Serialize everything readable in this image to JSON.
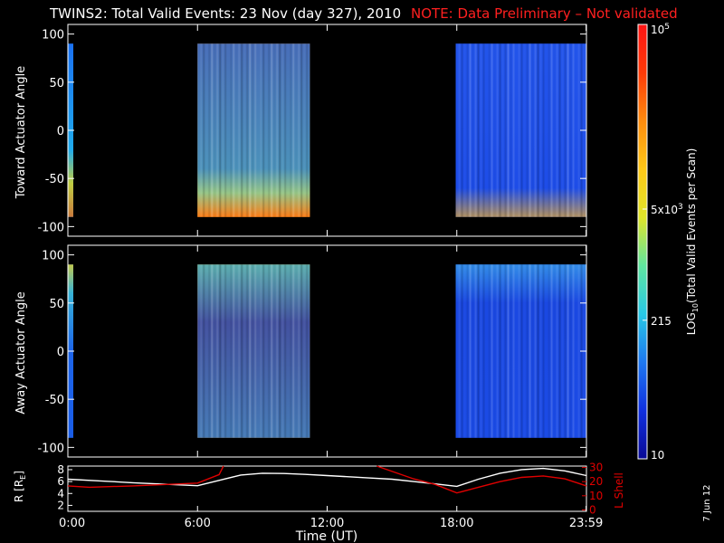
{
  "title": "TWINS2: Total Valid Events: 23 Nov (day 327), 2010",
  "note": "NOTE: Data Preliminary – Not validated",
  "date_stamp": "7 Jun 12",
  "colors": {
    "background": "#000000",
    "foreground": "#ffffff",
    "note": "#ff2020",
    "lshell": "#e00000"
  },
  "chart_data": [
    {
      "type": "heatmap",
      "name": "toward",
      "ylabel": "Toward Actuator Angle",
      "ylim": [
        -110,
        110
      ],
      "yticks": [
        100,
        50,
        0,
        -50,
        -100
      ],
      "xlim": [
        0,
        24
      ],
      "blocks": [
        {
          "x": [
            0,
            0.25
          ],
          "base": "#0f7cf6",
          "profile": [
            {
              "y": 90,
              "c": "#1e6ef0"
            },
            {
              "y": -20,
              "c": "#25b8ea"
            },
            {
              "y": -55,
              "c": "#f3e50f"
            },
            {
              "y": -90,
              "c": "#ff7a08"
            }
          ]
        },
        {
          "x": [
            6.0,
            11.2
          ],
          "base": "#fb9d20",
          "profile": [
            {
              "y": 90,
              "c": "#1560e4"
            },
            {
              "y": -40,
              "c": "#1a8ee6"
            },
            {
              "y": -65,
              "c": "#79d1a4"
            },
            {
              "y": -90,
              "c": "#fb7415"
            }
          ]
        },
        {
          "x": [
            17.95,
            24
          ],
          "base": "#1b47e6",
          "profile": [
            {
              "y": 90,
              "c": "#2558ec"
            },
            {
              "y": -60,
              "c": "#1e4ee8"
            },
            {
              "y": -90,
              "c": "#d9a43c"
            }
          ]
        }
      ]
    },
    {
      "type": "heatmap",
      "name": "away",
      "ylabel": "Away Actuator Angle",
      "ylim": [
        -110,
        110
      ],
      "yticks": [
        100,
        50,
        0,
        -50,
        -100
      ],
      "xlim": [
        0,
        24
      ],
      "blocks": [
        {
          "x": [
            0,
            0.25
          ],
          "base": "#1a6df0",
          "profile": [
            {
              "y": 90,
              "c": "#f3e320"
            },
            {
              "y": 60,
              "c": "#40c8d0"
            },
            {
              "y": 0,
              "c": "#1e62e8"
            },
            {
              "y": -90,
              "c": "#1a58e4"
            }
          ]
        },
        {
          "x": [
            6.0,
            11.2
          ],
          "base": "#fb9d20",
          "profile": [
            {
              "y": 90,
              "c": "#2fb4d8"
            },
            {
              "y": 30,
              "c": "#0f3cc4"
            },
            {
              "y": -90,
              "c": "#1270e0"
            }
          ]
        },
        {
          "x": [
            17.95,
            24
          ],
          "base": "#1b47e6",
          "profile": [
            {
              "y": 90,
              "c": "#3aa0e8"
            },
            {
              "y": 50,
              "c": "#1a48e0"
            },
            {
              "y": -90,
              "c": "#1b4ce6"
            }
          ]
        }
      ]
    },
    {
      "type": "line",
      "name": "orbit",
      "xlabel": "Time (UT)",
      "xticks": [
        "0:00",
        "6:00",
        "12:00",
        "18:00",
        "23:59"
      ],
      "xtick_values": [
        0,
        6,
        12,
        18,
        23.983
      ],
      "y_left_label": "R [R",
      "y_left_sub": "E",
      "y_left_label_end": "]",
      "y_left_ticks": [
        8,
        6,
        4,
        2
      ],
      "y_left_lim": [
        1,
        8.6
      ],
      "y_right_label": "L Shell",
      "y_right_ticks": [
        30,
        20,
        10,
        0
      ],
      "y_right_lim": [
        -1,
        31
      ],
      "series": [
        {
          "axis": "left",
          "color": "#ffffff",
          "x": [
            0,
            1.5,
            3,
            6,
            7,
            8,
            9,
            10,
            11,
            12,
            13,
            14,
            15,
            16,
            17,
            18,
            19,
            20,
            21,
            22,
            23,
            24
          ],
          "y": [
            6.4,
            6.1,
            5.8,
            5.3,
            6.2,
            7.1,
            7.4,
            7.35,
            7.2,
            7.0,
            6.8,
            6.6,
            6.4,
            6.0,
            5.6,
            5.2,
            6.4,
            7.4,
            8.0,
            8.2,
            7.8,
            7.0
          ]
        },
        {
          "axis": "right",
          "color": "#e00000",
          "x": [
            0,
            1,
            3,
            6,
            7,
            7.2
          ],
          "y": [
            17,
            16,
            17,
            19,
            25,
            31
          ]
        },
        {
          "axis": "right",
          "color": "#e00000",
          "x": [
            14.3,
            16,
            17,
            18,
            19,
            20,
            21,
            22,
            23,
            24
          ],
          "y": [
            31,
            22,
            18,
            12,
            16,
            20,
            23,
            24,
            22,
            17
          ]
        }
      ]
    }
  ],
  "colorbar": {
    "label": "LOG",
    "label_sub": "10",
    "label_rest": "(Total Valid Events per Scan)",
    "ticks": [
      {
        "base": "10",
        "exp": "5",
        "frac": 1.0
      },
      {
        "base": "5x10",
        "exp": "3",
        "frac": 0.575
      },
      {
        "base": "215",
        "exp": "",
        "frac": 0.319
      },
      {
        "base": "10",
        "exp": "",
        "frac": 0.0
      }
    ],
    "stops": [
      "#0a0a96",
      "#1030e0",
      "#1e78f0",
      "#28c8e6",
      "#60e6a0",
      "#e0e62a",
      "#ffc818",
      "#ff8c0e",
      "#ff3a08",
      "#ff1414"
    ]
  }
}
